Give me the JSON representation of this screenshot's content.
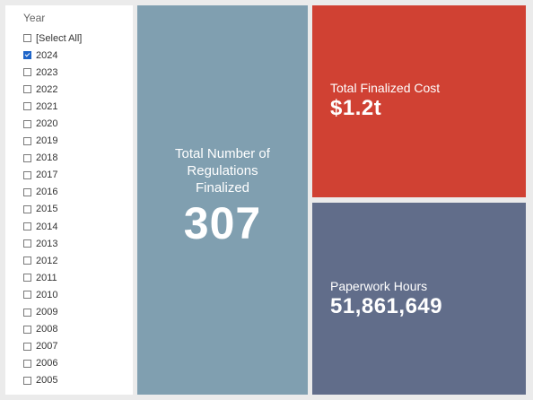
{
  "slicer": {
    "title": "Year",
    "items": [
      {
        "label": "[Select All]",
        "checked": false
      },
      {
        "label": "2024",
        "checked": true
      },
      {
        "label": "2023",
        "checked": false
      },
      {
        "label": "2022",
        "checked": false
      },
      {
        "label": "2021",
        "checked": false
      },
      {
        "label": "2020",
        "checked": false
      },
      {
        "label": "2019",
        "checked": false
      },
      {
        "label": "2018",
        "checked": false
      },
      {
        "label": "2017",
        "checked": false
      },
      {
        "label": "2016",
        "checked": false
      },
      {
        "label": "2015",
        "checked": false
      },
      {
        "label": "2014",
        "checked": false
      },
      {
        "label": "2013",
        "checked": false
      },
      {
        "label": "2012",
        "checked": false
      },
      {
        "label": "2011",
        "checked": false
      },
      {
        "label": "2010",
        "checked": false
      },
      {
        "label": "2009",
        "checked": false
      },
      {
        "label": "2008",
        "checked": false
      },
      {
        "label": "2007",
        "checked": false
      },
      {
        "label": "2006",
        "checked": false
      },
      {
        "label": "2005",
        "checked": false
      }
    ]
  },
  "cards": {
    "total_regulations": {
      "label": "Total Number of Regulations Finalized",
      "value": "307",
      "color": "#809fb0"
    },
    "finalized_cost": {
      "label": "Total Finalized Cost",
      "value": "$1.2t",
      "color": "#d04133"
    },
    "paperwork_hours": {
      "label": "Paperwork Hours",
      "value": "51,861,649",
      "color": "#616d8a"
    }
  },
  "colors": {
    "background": "#ebebeb",
    "checkbox_checked": "#1e64c8"
  }
}
